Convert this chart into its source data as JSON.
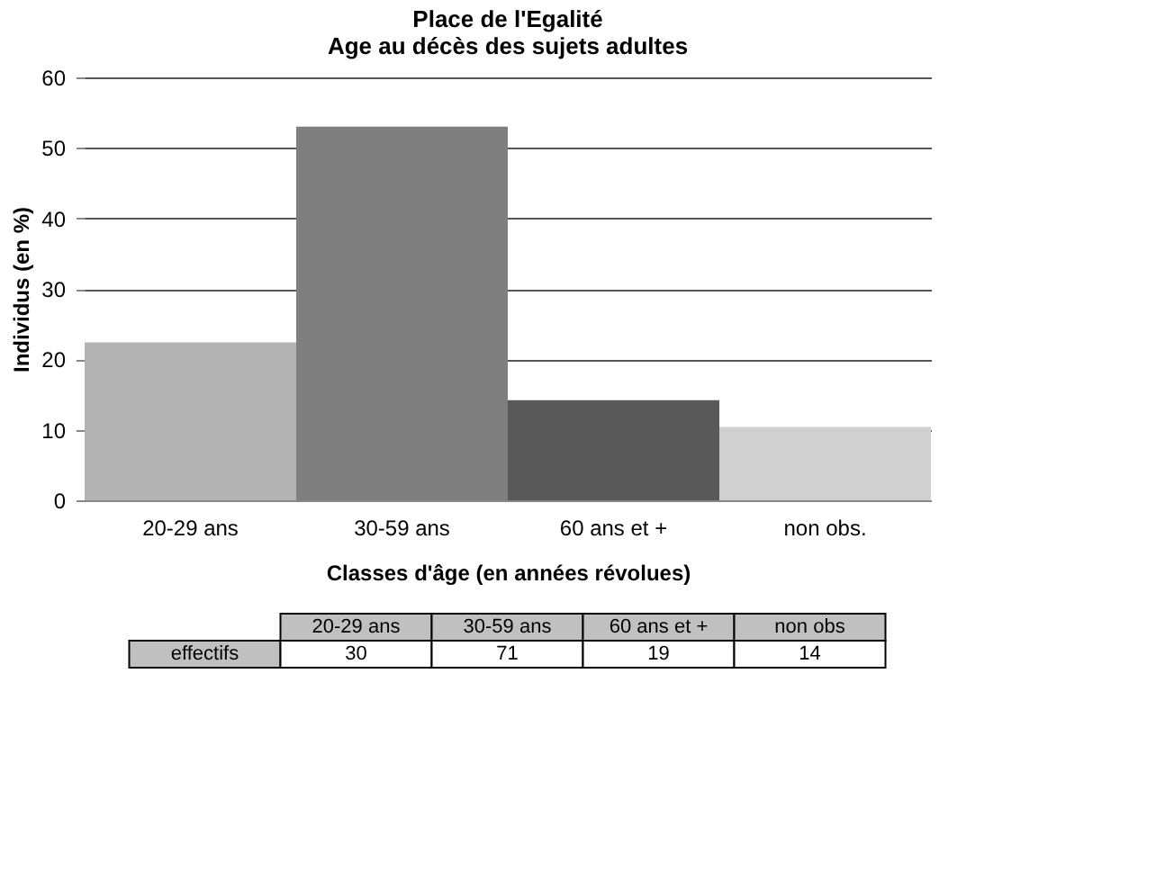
{
  "chart_data": {
    "type": "bar",
    "title": "Place de l'Egalité\nAge au décès des sujets adultes",
    "xlabel": "Classes d'âge (en années révolues)",
    "ylabel": "Individus (en %)",
    "categories": [
      "20-29 ans",
      "30-59 ans",
      "60 ans et +",
      "non obs."
    ],
    "values": [
      22.4,
      53.0,
      14.2,
      10.4
    ],
    "colors": [
      "#b3b3b3",
      "#7f7f7f",
      "#595959",
      "#d0d0d0"
    ],
    "ylim": [
      0,
      60
    ],
    "yticks": [
      0,
      10,
      20,
      30,
      40,
      50,
      60
    ],
    "grid": "y",
    "annotations": [
      "20-29 ans",
      "30-59 ans",
      "60 ans et +",
      "non obs",
      "effectifs",
      "30",
      "71",
      "19",
      "14"
    ]
  }
}
